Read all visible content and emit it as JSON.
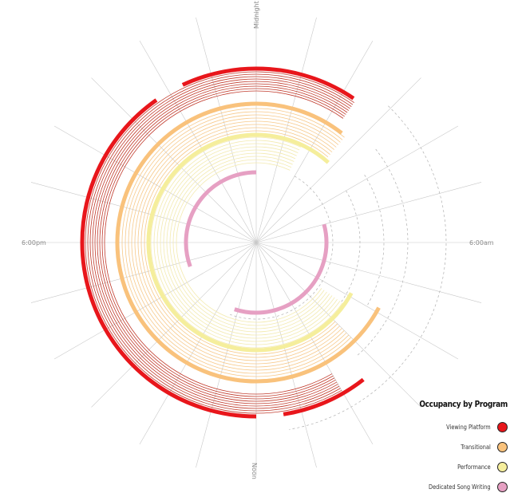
{
  "clock_labels": {
    "top": "Midnight",
    "right": "6:00am",
    "bottom": "Noon",
    "left": "6:00pm"
  },
  "legend": {
    "title": "Occupancy by Program",
    "items": [
      {
        "label": "Viewing Platform",
        "color": "#e8161b"
      },
      {
        "label": "Transitional",
        "color": "#f9c27c"
      },
      {
        "label": "Performance",
        "color": "#f5ee9c"
      },
      {
        "label": "Dedicated Song Writing",
        "color": "#e6a0c3"
      }
    ]
  },
  "colors": {
    "spokes": "#c8c8c8",
    "dashed_rings": "#b0b0b0",
    "viewing_platform_thin": "#c0392b",
    "transitional_thin": "#f7c98a",
    "performance_thin": "#f3eab0",
    "song_writing_thin": "#d9a6c4"
  }
}
